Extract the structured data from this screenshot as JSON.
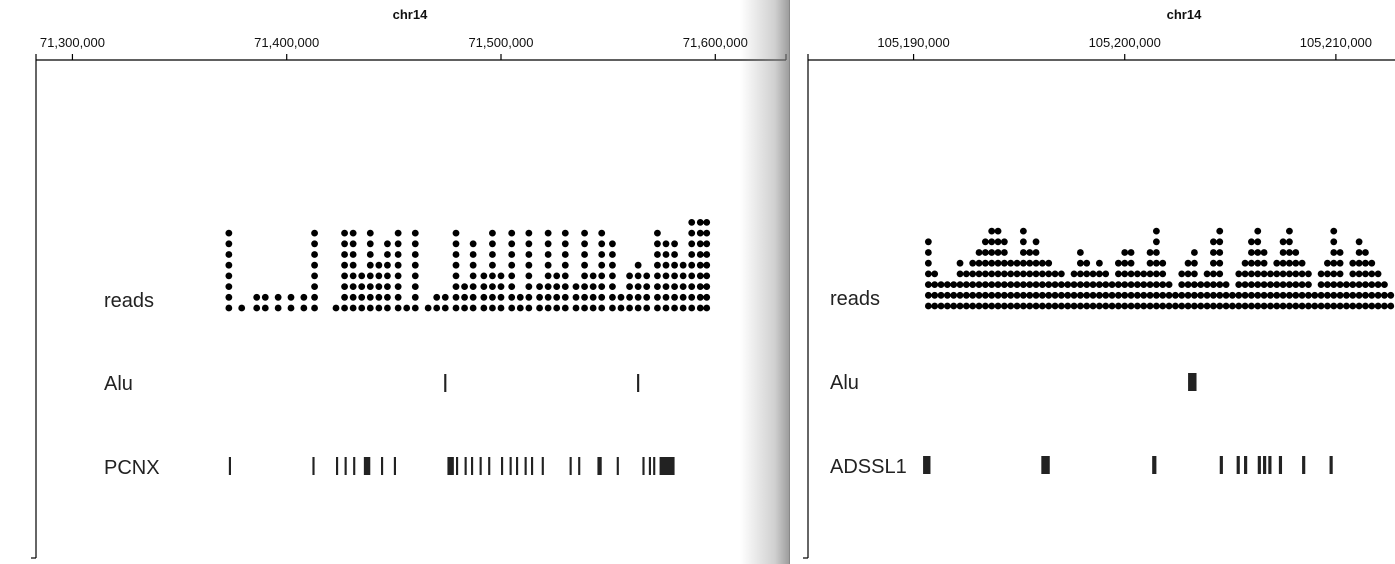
{
  "panels": [
    {
      "id": "left",
      "chromosome": "chr14",
      "axis": {
        "range": [
          71283000,
          71633000
        ],
        "ticks": [
          71300000,
          71400000,
          71500000,
          71600000
        ],
        "tick_labels": [
          "71,300,000",
          "71,400,000",
          "71,500,000",
          "71,600,000"
        ]
      },
      "tracks": {
        "reads": {
          "label": "reads",
          "stacks": [
            [
              71373000,
              8
            ],
            [
              71379000,
              1
            ],
            [
              71386000,
              2
            ],
            [
              71390000,
              2
            ],
            [
              71396000,
              2
            ],
            [
              71402000,
              2
            ],
            [
              71408000,
              2
            ],
            [
              71413000,
              8
            ],
            [
              71423000,
              1
            ],
            [
              71427000,
              8
            ],
            [
              71431000,
              8
            ],
            [
              71435000,
              4
            ],
            [
              71439000,
              8
            ],
            [
              71443000,
              5
            ],
            [
              71447000,
              7
            ],
            [
              71452000,
              8
            ],
            [
              71456000,
              1
            ],
            [
              71460000,
              8
            ],
            [
              71466000,
              1
            ],
            [
              71470000,
              2
            ],
            [
              71474000,
              2
            ],
            [
              71479000,
              8
            ],
            [
              71483000,
              3
            ],
            [
              71487000,
              7
            ],
            [
              71492000,
              4
            ],
            [
              71496000,
              8
            ],
            [
              71500000,
              4
            ],
            [
              71505000,
              8
            ],
            [
              71509000,
              2
            ],
            [
              71513000,
              8
            ],
            [
              71518000,
              3
            ],
            [
              71522000,
              8
            ],
            [
              71526000,
              4
            ],
            [
              71530000,
              8
            ],
            [
              71535000,
              3
            ],
            [
              71539000,
              8
            ],
            [
              71543000,
              4
            ],
            [
              71547000,
              8
            ],
            [
              71552000,
              7
            ],
            [
              71556000,
              2
            ],
            [
              71560000,
              4
            ],
            [
              71564000,
              5
            ],
            [
              71568000,
              4
            ],
            [
              71573000,
              8
            ],
            [
              71577000,
              7
            ],
            [
              71581000,
              7
            ],
            [
              71585000,
              5
            ],
            [
              71589000,
              9
            ],
            [
              71593000,
              9
            ],
            [
              71596000,
              9
            ]
          ]
        },
        "repeats": {
          "label": "Alu",
          "features": [
            [
              71473500,
              71474500
            ],
            [
              71563500,
              71564500
            ]
          ]
        },
        "gene": {
          "label": "PCNX",
          "features": [
            [
              71373000,
              71374000
            ],
            [
              71412000,
              71413000
            ],
            [
              71423000,
              71424000
            ],
            [
              71427000,
              71428000
            ],
            [
              71431000,
              71432000
            ],
            [
              71436000,
              71439000
            ],
            [
              71444000,
              71445000
            ],
            [
              71450000,
              71451000
            ],
            [
              71475000,
              71478000
            ],
            [
              71479000,
              71480000
            ],
            [
              71483000,
              71484000
            ],
            [
              71486000,
              71487000
            ],
            [
              71490000,
              71491000
            ],
            [
              71494000,
              71495000
            ],
            [
              71500000,
              71501000
            ],
            [
              71504000,
              71505000
            ],
            [
              71507000,
              71508000
            ],
            [
              71511000,
              71512000
            ],
            [
              71514000,
              71515000
            ],
            [
              71519000,
              71520000
            ],
            [
              71532000,
              71533000
            ],
            [
              71536000,
              71537000
            ],
            [
              71545000,
              71547000
            ],
            [
              71554000,
              71555000
            ],
            [
              71566000,
              71567000
            ],
            [
              71569000,
              71570000
            ],
            [
              71571000,
              71572000
            ],
            [
              71574000,
              71581000
            ]
          ]
        }
      }
    },
    {
      "id": "right",
      "chromosome": "chr14",
      "axis": {
        "range": [
          105185000,
          105212800
        ],
        "ticks": [
          105190000,
          105200000,
          105210000
        ],
        "tick_labels": [
          "105,190,000",
          "105,200,000",
          "105,210,000"
        ]
      },
      "tracks": {
        "reads": {
          "label": "reads",
          "stacks": [
            [
              105190700,
              7
            ],
            [
              105191000,
              4
            ],
            [
              105191300,
              3
            ],
            [
              105191600,
              3
            ],
            [
              105191900,
              3
            ],
            [
              105192200,
              5
            ],
            [
              105192500,
              4
            ],
            [
              105192800,
              5
            ],
            [
              105193100,
              6
            ],
            [
              105193400,
              7
            ],
            [
              105193700,
              8
            ],
            [
              105194000,
              8
            ],
            [
              105194300,
              7
            ],
            [
              105194600,
              5
            ],
            [
              105194900,
              5
            ],
            [
              105195200,
              8
            ],
            [
              105195500,
              6
            ],
            [
              105195800,
              7
            ],
            [
              105196100,
              5
            ],
            [
              105196400,
              5
            ],
            [
              105196700,
              4
            ],
            [
              105197000,
              4
            ],
            [
              105197300,
              3
            ],
            [
              105197600,
              4
            ],
            [
              105197900,
              6
            ],
            [
              105198200,
              5
            ],
            [
              105198500,
              4
            ],
            [
              105198800,
              5
            ],
            [
              105199100,
              4
            ],
            [
              105199400,
              3
            ],
            [
              105199700,
              5
            ],
            [
              105200000,
              6
            ],
            [
              105200300,
              6
            ],
            [
              105200600,
              4
            ],
            [
              105200900,
              4
            ],
            [
              105201200,
              6
            ],
            [
              105201500,
              8
            ],
            [
              105201800,
              5
            ],
            [
              105202100,
              3
            ],
            [
              105202400,
              2
            ],
            [
              105202700,
              4
            ],
            [
              105203000,
              5
            ],
            [
              105203300,
              6
            ],
            [
              105203600,
              3
            ],
            [
              105203900,
              4
            ],
            [
              105204200,
              7
            ],
            [
              105204500,
              8
            ],
            [
              105204800,
              3
            ],
            [
              105205100,
              2
            ],
            [
              105205400,
              4
            ],
            [
              105205700,
              5
            ],
            [
              105206000,
              7
            ],
            [
              105206300,
              8
            ],
            [
              105206600,
              6
            ],
            [
              105206900,
              4
            ],
            [
              105207200,
              5
            ],
            [
              105207500,
              7
            ],
            [
              105207800,
              8
            ],
            [
              105208100,
              6
            ],
            [
              105208400,
              5
            ],
            [
              105208700,
              4
            ],
            [
              105209000,
              2
            ],
            [
              105209300,
              4
            ],
            [
              105209600,
              5
            ],
            [
              105209900,
              8
            ],
            [
              105210200,
              6
            ],
            [
              105210500,
              3
            ],
            [
              105210800,
              5
            ],
            [
              105211100,
              7
            ],
            [
              105211400,
              6
            ],
            [
              105211700,
              5
            ],
            [
              105212000,
              4
            ],
            [
              105212300,
              3
            ],
            [
              105212600,
              2
            ]
          ]
        },
        "repeats": {
          "label": "Alu",
          "features": [
            [
              105203000,
              105203400
            ]
          ]
        },
        "gene": {
          "label": "ADSSL1",
          "features": [
            [
              105190450,
              105190800
            ],
            [
              105196050,
              105196450
            ],
            [
              105201300,
              105201500
            ],
            [
              105204500,
              105204650
            ],
            [
              105205300,
              105205450
            ],
            [
              105205650,
              105205800
            ],
            [
              105206300,
              105206450
            ],
            [
              105206550,
              105206700
            ],
            [
              105206800,
              105206950
            ],
            [
              105207300,
              105207450
            ],
            [
              105208400,
              105208550
            ],
            [
              105209700,
              105209850
            ]
          ]
        }
      }
    }
  ]
}
